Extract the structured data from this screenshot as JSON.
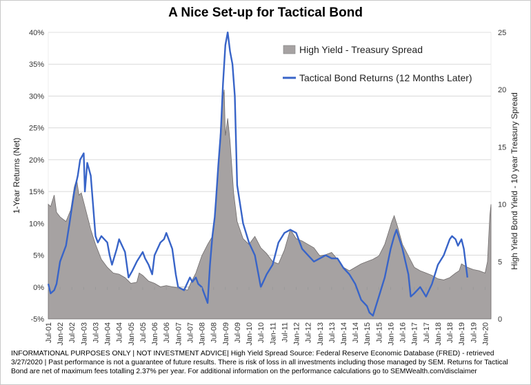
{
  "chart_data": {
    "type": "combo",
    "title": "A Nice Set-up for Tactical Bond",
    "left_axis": {
      "label": "1-Year Returns (Net)",
      "ylim": [
        -5,
        40
      ],
      "ticks": [
        -5,
        0,
        5,
        10,
        15,
        20,
        25,
        30,
        35,
        40
      ],
      "tick_labels": [
        "-5%",
        "0%",
        "5%",
        "10%",
        "15%",
        "20%",
        "25%",
        "30%",
        "35%",
        "40%"
      ]
    },
    "right_axis": {
      "label": "High Yield Bond Yield - 10 year Treasury Spread",
      "ylim": [
        0,
        25
      ],
      "ticks": [
        0,
        5,
        10,
        15,
        20,
        25
      ],
      "tick_labels": [
        "0",
        "5",
        "10",
        "15",
        "20",
        "25"
      ]
    },
    "x_start": 2001.5,
    "x_end": 2020.25,
    "x_tick_labels": [
      "Jul-01",
      "Jan-02",
      "Jul-02",
      "Jan-03",
      "Jul-03",
      "Jan-04",
      "Jul-04",
      "Jan-05",
      "Jul-05",
      "Jan-06",
      "Jul-06",
      "Jan-07",
      "Jul-07",
      "Jan-08",
      "Jul-08",
      "Jan-09",
      "Jul-09",
      "Jan-10",
      "Jul-10",
      "Jan-11",
      "Jul-11",
      "Jan-12",
      "Jul-12",
      "Jan-13",
      "Jul-13",
      "Jan-14",
      "Jul-14",
      "Jan-15",
      "Jul-15",
      "Jan-16",
      "Jul-16",
      "Jan-17",
      "Jul-17",
      "Jan-18",
      "Jul-18",
      "Jan-19",
      "Jul-19",
      "Jan-20"
    ],
    "series": [
      {
        "name": "High Yield - Treasury Spread",
        "type": "area",
        "axis": "right",
        "color": "#a6a2a2",
        "x": [
          2001.5,
          2001.6,
          2001.75,
          2001.85,
          2002.0,
          2002.25,
          2002.45,
          2002.6,
          2002.7,
          2002.8,
          2002.9,
          2003.0,
          2003.15,
          2003.3,
          2003.5,
          2003.75,
          2004.0,
          2004.25,
          2004.5,
          2004.75,
          2005.0,
          2005.25,
          2005.35,
          2005.5,
          2005.75,
          2006.0,
          2006.25,
          2006.5,
          2006.75,
          2007.0,
          2007.25,
          2007.4,
          2007.55,
          2007.75,
          2008.0,
          2008.25,
          2008.45,
          2008.6,
          2008.75,
          2008.85,
          2008.95,
          2009.0,
          2009.1,
          2009.2,
          2009.35,
          2009.5,
          2009.75,
          2010.0,
          2010.25,
          2010.5,
          2010.75,
          2011.0,
          2011.25,
          2011.5,
          2011.75,
          2012.0,
          2012.25,
          2012.5,
          2012.75,
          2013.0,
          2013.25,
          2013.5,
          2013.75,
          2014.0,
          2014.25,
          2014.5,
          2014.75,
          2015.0,
          2015.25,
          2015.5,
          2015.75,
          2015.9,
          2016.05,
          2016.15,
          2016.3,
          2016.5,
          2016.75,
          2017.0,
          2017.25,
          2017.5,
          2017.75,
          2018.0,
          2018.25,
          2018.5,
          2018.75,
          2018.9,
          2019.0,
          2019.25,
          2019.5,
          2019.75,
          2020.0,
          2020.1,
          2020.2,
          2020.25
        ],
        "values": [
          10,
          9.8,
          10.8,
          9.3,
          8.9,
          8.5,
          9.5,
          11.5,
          12.2,
          10.8,
          11,
          10.2,
          9.0,
          7.8,
          6.5,
          5.2,
          4.5,
          4.0,
          3.9,
          3.6,
          3.1,
          3.2,
          4.0,
          3.8,
          3.3,
          3.1,
          2.8,
          2.9,
          2.8,
          2.7,
          2.6,
          2.5,
          3.2,
          4.0,
          5.5,
          6.5,
          7.2,
          10.0,
          15.0,
          18.5,
          20.0,
          16.0,
          17.5,
          15.5,
          11.0,
          8.5,
          7.0,
          6.5,
          7.2,
          6.2,
          5.7,
          5.0,
          4.8,
          6.0,
          7.8,
          7.0,
          6.8,
          6.5,
          6.2,
          5.5,
          5.6,
          5.8,
          5.2,
          4.5,
          4.2,
          4.5,
          4.8,
          5.0,
          5.2,
          5.5,
          6.5,
          7.5,
          8.5,
          9.0,
          8.0,
          6.5,
          5.5,
          4.5,
          4.2,
          4.0,
          3.8,
          3.5,
          3.4,
          3.6,
          4.0,
          4.2,
          4.8,
          4.5,
          4.3,
          4.2,
          4.0,
          5.0,
          9.0,
          10.0
        ]
      },
      {
        "name": "Tactical Bond Returns (12 Months Later)",
        "type": "line",
        "axis": "left",
        "color": "#3864c8",
        "x": [
          2001.5,
          2001.6,
          2001.75,
          2001.85,
          2002.0,
          2002.25,
          2002.4,
          2002.5,
          2002.6,
          2002.75,
          2002.85,
          2003.0,
          2003.05,
          2003.15,
          2003.3,
          2003.5,
          2003.6,
          2003.75,
          2004.0,
          2004.1,
          2004.2,
          2004.4,
          2004.5,
          2004.75,
          2004.9,
          2005.05,
          2005.25,
          2005.5,
          2005.6,
          2005.75,
          2005.9,
          2006.0,
          2006.25,
          2006.4,
          2006.5,
          2006.75,
          2006.9,
          2007.0,
          2007.25,
          2007.5,
          2007.6,
          2007.75,
          2007.85,
          2008.0,
          2008.2,
          2008.25,
          2008.35,
          2008.45,
          2008.55,
          2008.6,
          2008.7,
          2008.8,
          2008.9,
          2008.95,
          2009.0,
          2009.1,
          2009.2,
          2009.3,
          2009.4,
          2009.5,
          2009.75,
          2010.0,
          2010.25,
          2010.5,
          2010.75,
          2011.0,
          2011.25,
          2011.5,
          2011.75,
          2012.0,
          2012.25,
          2012.5,
          2012.75,
          2013.0,
          2013.25,
          2013.5,
          2013.75,
          2014.0,
          2014.25,
          2014.5,
          2014.75,
          2015.0,
          2015.1,
          2015.25,
          2015.5,
          2015.75,
          2016.0,
          2016.15,
          2016.25,
          2016.5,
          2016.75,
          2016.85,
          2017.0,
          2017.25,
          2017.5,
          2017.75,
          2018.0,
          2018.25,
          2018.5,
          2018.6,
          2018.75,
          2018.85,
          2019.0,
          2019.1,
          2019.25
        ],
        "values": [
          0.5,
          -1.0,
          -0.5,
          0.5,
          4.0,
          6.5,
          10.0,
          12.5,
          15.0,
          17.5,
          20.0,
          21.0,
          15.0,
          19.5,
          17.5,
          8.0,
          7.0,
          8.0,
          7.0,
          5.0,
          3.5,
          6.0,
          7.5,
          5.5,
          1.5,
          2.5,
          4.0,
          5.5,
          4.5,
          3.5,
          2.0,
          5.0,
          7.0,
          7.5,
          8.5,
          6.0,
          2.0,
          0.0,
          -0.5,
          1.5,
          0.8,
          1.5,
          0.5,
          0.0,
          -2.0,
          -2.5,
          3.5,
          8.0,
          11.0,
          13.5,
          19.0,
          24.0,
          32.0,
          35.0,
          38.0,
          40.0,
          37.0,
          35.0,
          30.0,
          16.0,
          10.0,
          7.0,
          5.0,
          0.0,
          2.0,
          3.5,
          7.0,
          8.5,
          9.0,
          8.5,
          6.0,
          5.0,
          4.0,
          4.5,
          5.0,
          4.5,
          4.5,
          3.0,
          2.0,
          0.5,
          -2.0,
          -3.0,
          -4.0,
          -4.5,
          -1.5,
          1.5,
          6.0,
          8.0,
          9.0,
          6.0,
          2.0,
          -1.5,
          -1.0,
          0.0,
          -1.5,
          0.5,
          3.5,
          5.0,
          7.5,
          8.0,
          7.5,
          6.5,
          7.5,
          6.0,
          1.5
        ]
      }
    ],
    "legend": {
      "position": "top-right"
    }
  },
  "disclaimer": "INFORMATIONAL PURPOSES ONLY | NOT INVESTMENT ADVICE| High Yield Spread Source: Federal Reserve Economic Database (FRED) - retrieved 3/27/2020 | Past performance is not a guarantee of future results. There is risk of loss in all investments including those managed by SEM. Returns for Tactical Bond are net of maximum fees totalling 2.37% per year. For additional information on the performance calculations go to SEMWealth.com/disclaimer"
}
